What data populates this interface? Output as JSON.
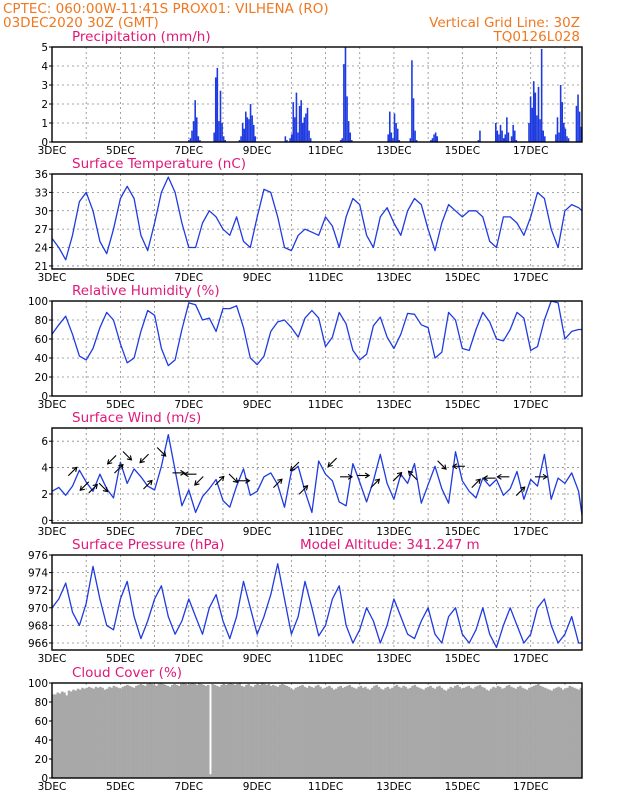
{
  "header": {
    "line1_left": "CPTEC:   060:00W-11:41S   PROX01: VILHENA (RO)",
    "line2_left": "03DEC2020 30Z (GMT)",
    "line2_right": "Vertical Grid Line: 30Z",
    "line3_right": "TQ0126L028"
  },
  "colors": {
    "header": "#f07820",
    "panel_title": "#e0187a",
    "series": "#1f3be0",
    "cloud": "#a8a8a8"
  },
  "x_axis": {
    "tick_labels": [
      "3DEC",
      "5DEC",
      "7DEC",
      "9DEC",
      "11DEC",
      "13DEC",
      "15DEC",
      "17DEC"
    ],
    "days_span": 15.5
  },
  "chart_data": [
    {
      "id": "precip",
      "type": "bar",
      "title": "Precipitation (mm/h)",
      "ylim": [
        0,
        5
      ],
      "yticks": [
        0,
        1,
        2,
        3,
        4,
        5
      ],
      "grid": true,
      "values": [
        0,
        0,
        0,
        0,
        0,
        0,
        0,
        0,
        0,
        0,
        0,
        0,
        0,
        0,
        0,
        0,
        0,
        0,
        0,
        0,
        0,
        0,
        0,
        0,
        0,
        0,
        0,
        0,
        0,
        0,
        0,
        0,
        0,
        0,
        0,
        0,
        0,
        0,
        0,
        0,
        0,
        0,
        0,
        0,
        0,
        0,
        0,
        0,
        0,
        0,
        0,
        0,
        0,
        0,
        0,
        0,
        0,
        0,
        0,
        0,
        0,
        0,
        0,
        0,
        0,
        0,
        0,
        0,
        0,
        0,
        0,
        0,
        0,
        0,
        0,
        0,
        0,
        0,
        0,
        0,
        0,
        0,
        0,
        0,
        0,
        0,
        0.1,
        0.2,
        0.6,
        1.1,
        2.2,
        1.3,
        0.3,
        0.1,
        0,
        0,
        0,
        0,
        0,
        0,
        0,
        0,
        0.5,
        3.4,
        3.9,
        1.1,
        2.7,
        1.0,
        0.3,
        0.1,
        0,
        0,
        0,
        0,
        0,
        0,
        0,
        0,
        0.1,
        0.3,
        1.0,
        0.7,
        1.6,
        1.3,
        1.2,
        2.0,
        1.4,
        0.9,
        0.3,
        0,
        0,
        0,
        0,
        0,
        0,
        0,
        0,
        0,
        0,
        0,
        0,
        0,
        0,
        0,
        0,
        0,
        0,
        0.3,
        0.1,
        0,
        0.2,
        0.4,
        2.1,
        1.3,
        2.6,
        0.5,
        1.9,
        2.2,
        1.0,
        1.3,
        1.5,
        1.8,
        0.6,
        0.2,
        0,
        0,
        0,
        0,
        0,
        0,
        0,
        0,
        0,
        0,
        0,
        0,
        0,
        0,
        0,
        0,
        0,
        0,
        0.1,
        0.2,
        4.1,
        5.0,
        2.4,
        1.1,
        0.5,
        0.1,
        0,
        0,
        0,
        0,
        0,
        0,
        0,
        0,
        0,
        0,
        0,
        0,
        0,
        0,
        0,
        0,
        0,
        0,
        0,
        0,
        0,
        0,
        0.4,
        1.6,
        0.5,
        0.2,
        1.5,
        1.0,
        0.7,
        0.1,
        0,
        0,
        0,
        0,
        0,
        0,
        0.2,
        4.3,
        2.3,
        0.6,
        0.1,
        0,
        0,
        0,
        0,
        0,
        0,
        0,
        0,
        0.1,
        0.2,
        0.4,
        0.5,
        0.3,
        0,
        0,
        0,
        0,
        0,
        0,
        0,
        0,
        0,
        0,
        0,
        0,
        0,
        0,
        0,
        0,
        0,
        0,
        0,
        0,
        0,
        0,
        0,
        0,
        0,
        0.1,
        0.6,
        0,
        0,
        0,
        0,
        0,
        0,
        0,
        0,
        0,
        1.0,
        0.6,
        0.4,
        0.9,
        0.6,
        0.2,
        0.4,
        1.3,
        0.5,
        0,
        0.3,
        0.9,
        0.6,
        0.1,
        0,
        0,
        0,
        0,
        0,
        0,
        0,
        1.0,
        2.4,
        1.8,
        3.2,
        2.6,
        1.4,
        2.9,
        1.2,
        4.9,
        0.6,
        0.3,
        0,
        0,
        0,
        0,
        0,
        0,
        0.4,
        1.3,
        0.5,
        3.0,
        2.1,
        1.0,
        0.7,
        0.3,
        0.2,
        0,
        0,
        0,
        0,
        1.9,
        2.5,
        1.6,
        0.8
      ]
    },
    {
      "id": "temp",
      "type": "line",
      "title": "Surface Temperature (nC)",
      "ylim": [
        20.5,
        36
      ],
      "yticks": [
        21,
        24,
        27,
        30,
        33,
        36
      ],
      "grid": true,
      "x": [
        0,
        0.2,
        0.4,
        0.6,
        0.8,
        1.0,
        1.2,
        1.4,
        1.6,
        1.8,
        2.0,
        2.2,
        2.4,
        2.6,
        2.8,
        3.0,
        3.2,
        3.4,
        3.6,
        3.8,
        4.0,
        4.2,
        4.4,
        4.6,
        4.8,
        5.0,
        5.2,
        5.4,
        5.6,
        5.8,
        6.0,
        6.2,
        6.4,
        6.6,
        6.8,
        7.0,
        7.2,
        7.4,
        7.6,
        7.8,
        8.0,
        8.2,
        8.4,
        8.6,
        8.8,
        9.0,
        9.2,
        9.4,
        9.6,
        9.8,
        10.0,
        10.2,
        10.4,
        10.6,
        10.8,
        11.0,
        11.2,
        11.4,
        11.6,
        11.8,
        12.0,
        12.2,
        12.4,
        12.6,
        12.8,
        13.0,
        13.2,
        13.4,
        13.6,
        13.8,
        14.0,
        14.2,
        14.4,
        14.6,
        14.8,
        15.0,
        15.2,
        15.4,
        15.5
      ],
      "values": [
        25.5,
        24,
        22,
        26,
        31.5,
        33,
        30,
        25,
        23,
        27,
        32,
        34,
        32,
        26,
        23.5,
        28,
        33,
        35.5,
        33,
        28,
        24,
        24,
        28,
        30,
        29,
        27,
        26,
        29,
        25,
        24,
        29,
        33.5,
        33,
        29,
        24,
        23.5,
        26,
        27,
        26.5,
        26,
        29,
        27.5,
        24,
        29,
        32,
        31,
        26,
        24,
        29,
        30.5,
        28,
        26,
        30,
        32,
        31,
        27,
        23.5,
        28,
        31,
        30,
        29,
        30,
        30,
        29,
        25,
        24,
        29,
        29,
        28,
        26,
        29,
        33,
        32,
        27,
        24,
        30,
        31,
        30.5,
        30
      ]
    },
    {
      "id": "rh",
      "type": "line",
      "title": "Relative Humidity (%)",
      "ylim": [
        0,
        100
      ],
      "yticks": [
        0,
        20,
        40,
        60,
        80,
        100
      ],
      "grid": true,
      "x": [
        0,
        0.2,
        0.4,
        0.6,
        0.8,
        1.0,
        1.2,
        1.4,
        1.6,
        1.8,
        2.0,
        2.2,
        2.4,
        2.6,
        2.8,
        3.0,
        3.2,
        3.4,
        3.6,
        3.8,
        4.0,
        4.2,
        4.4,
        4.6,
        4.8,
        5.0,
        5.2,
        5.4,
        5.6,
        5.8,
        6.0,
        6.2,
        6.4,
        6.6,
        6.8,
        7.0,
        7.2,
        7.4,
        7.6,
        7.8,
        8.0,
        8.2,
        8.4,
        8.6,
        8.8,
        9.0,
        9.2,
        9.4,
        9.6,
        9.8,
        10.0,
        10.2,
        10.4,
        10.6,
        10.8,
        11.0,
        11.2,
        11.4,
        11.6,
        11.8,
        12.0,
        12.2,
        12.4,
        12.6,
        12.8,
        13.0,
        13.2,
        13.4,
        13.6,
        13.8,
        14.0,
        14.2,
        14.4,
        14.6,
        14.8,
        15.0,
        15.2,
        15.4,
        15.5
      ],
      "values": [
        65,
        75,
        84,
        65,
        42,
        38,
        50,
        72,
        88,
        80,
        55,
        35,
        40,
        68,
        90,
        85,
        50,
        32,
        38,
        70,
        98,
        96,
        80,
        82,
        68,
        92,
        92,
        95,
        72,
        40,
        33,
        42,
        68,
        78,
        80,
        72,
        62,
        82,
        90,
        82,
        52,
        62,
        88,
        76,
        48,
        38,
        44,
        74,
        83,
        62,
        50,
        65,
        87,
        86,
        75,
        72,
        40,
        46,
        88,
        80,
        50,
        48,
        70,
        88,
        78,
        60,
        58,
        70,
        88,
        82,
        48,
        52,
        80,
        100,
        98,
        60,
        68,
        70,
        70
      ]
    },
    {
      "id": "wind",
      "type": "line",
      "title": "Surface Wind (m/s)",
      "ylim": [
        -0.2,
        7.0
      ],
      "yticks": [
        0,
        2,
        4,
        6
      ],
      "grid": true,
      "x": [
        0,
        0.2,
        0.4,
        0.6,
        0.8,
        1.0,
        1.2,
        1.4,
        1.6,
        1.8,
        2.0,
        2.2,
        2.4,
        2.6,
        2.8,
        3.0,
        3.2,
        3.4,
        3.6,
        3.8,
        4.0,
        4.2,
        4.4,
        4.6,
        4.8,
        5.0,
        5.2,
        5.4,
        5.6,
        5.8,
        6.0,
        6.2,
        6.4,
        6.6,
        6.8,
        7.0,
        7.2,
        7.4,
        7.6,
        7.8,
        8.0,
        8.2,
        8.4,
        8.6,
        8.8,
        9.0,
        9.2,
        9.4,
        9.6,
        9.8,
        10.0,
        10.2,
        10.4,
        10.6,
        10.8,
        11.0,
        11.2,
        11.4,
        11.6,
        11.8,
        12.0,
        12.2,
        12.4,
        12.6,
        12.8,
        13.0,
        13.2,
        13.4,
        13.6,
        13.8,
        14.0,
        14.2,
        14.4,
        14.6,
        14.8,
        15.0,
        15.2,
        15.4,
        15.5
      ],
      "values": [
        2.2,
        2.5,
        1.9,
        2.6,
        3.8,
        2.9,
        2.2,
        3.5,
        2.4,
        1.7,
        4.4,
        2.8,
        3.9,
        3.3,
        2.6,
        2.3,
        4.1,
        6.5,
        3.8,
        1.1,
        2.3,
        0.6,
        1.8,
        2.4,
        3.1,
        1.5,
        1.0,
        2.6,
        3.9,
        1.9,
        2.2,
        3.3,
        3.6,
        2.7,
        1.0,
        3.7,
        4.1,
        2.2,
        0.6,
        4.5,
        3.5,
        3.0,
        1.4,
        1.1,
        4.3,
        2.9,
        1.4,
        3.0,
        5.0,
        2.8,
        1.6,
        3.5,
        2.8,
        4.3,
        1.3,
        2.7,
        4.1,
        2.4,
        1.3,
        5.2,
        3.0,
        2.2,
        1.7,
        3.2,
        2.6,
        3.1,
        1.9,
        2.4,
        3.7,
        1.6,
        3.1,
        2.6,
        5.0,
        1.6,
        3.2,
        2.8,
        3.6,
        2.2,
        0.4
      ]
    },
    {
      "id": "pres",
      "type": "line",
      "title": "Surface Pressure (hPa)",
      "annotation": "Model Altitude: 341.247 m",
      "ylim": [
        965.2,
        976
      ],
      "yticks": [
        966,
        968,
        970,
        972,
        974,
        976
      ],
      "grid": true,
      "x": [
        0,
        0.2,
        0.4,
        0.6,
        0.8,
        1.0,
        1.2,
        1.4,
        1.6,
        1.8,
        2.0,
        2.2,
        2.4,
        2.6,
        2.8,
        3.0,
        3.2,
        3.4,
        3.6,
        3.8,
        4.0,
        4.2,
        4.4,
        4.6,
        4.8,
        5.0,
        5.2,
        5.4,
        5.6,
        5.8,
        6.0,
        6.2,
        6.4,
        6.6,
        6.8,
        7.0,
        7.2,
        7.4,
        7.6,
        7.8,
        8.0,
        8.2,
        8.4,
        8.6,
        8.8,
        9.0,
        9.2,
        9.4,
        9.6,
        9.8,
        10.0,
        10.2,
        10.4,
        10.6,
        10.8,
        11.0,
        11.2,
        11.4,
        11.6,
        11.8,
        12.0,
        12.2,
        12.4,
        12.6,
        12.8,
        13.0,
        13.2,
        13.4,
        13.6,
        13.8,
        14.0,
        14.2,
        14.4,
        14.6,
        14.8,
        15.0,
        15.2,
        15.4,
        15.5
      ],
      "values": [
        970,
        971,
        972.8,
        969.5,
        968,
        970.5,
        974.7,
        971,
        968,
        967.5,
        971,
        973,
        969,
        966.5,
        968.5,
        971,
        972.5,
        969,
        967,
        968.5,
        971,
        969,
        967,
        970,
        971.5,
        968.5,
        966.5,
        969,
        973,
        970,
        967,
        969,
        971.5,
        975,
        971,
        967,
        969,
        973,
        970,
        966.8,
        968,
        971,
        972.5,
        968,
        966,
        967.5,
        970,
        968.5,
        966,
        968,
        971,
        969,
        967,
        966.5,
        968.5,
        970,
        967,
        966,
        969,
        970,
        967,
        966,
        967.5,
        970,
        967,
        965.5,
        968,
        970,
        968,
        966,
        967,
        970,
        971,
        968,
        966,
        967,
        969,
        966,
        966
      ]
    },
    {
      "id": "cloud",
      "type": "area",
      "title": "Cloud Cover (%)",
      "ylim": [
        0,
        100
      ],
      "yticks": [
        0,
        20,
        40,
        60,
        80,
        100
      ],
      "grid": true,
      "values": [
        88,
        88,
        90,
        89,
        91,
        90,
        87,
        92,
        91,
        93,
        92,
        94,
        93,
        95,
        94,
        95,
        96,
        95,
        94,
        96,
        95,
        96,
        95,
        93,
        94,
        96,
        95,
        97,
        96,
        95,
        94,
        96,
        97,
        98,
        97,
        96,
        95,
        97,
        98,
        99,
        98,
        97,
        99,
        100,
        99,
        98,
        97,
        99,
        100,
        99,
        98,
        97,
        96,
        98,
        99,
        98,
        97,
        99,
        100,
        99,
        98,
        99,
        100,
        99,
        98,
        100,
        99,
        98,
        97,
        98,
        4,
        99,
        98,
        97,
        96,
        98,
        99,
        98,
        99,
        100,
        99,
        98,
        99,
        100,
        97,
        96,
        98,
        99,
        97,
        96,
        98,
        99,
        98,
        100,
        99,
        98,
        99,
        97,
        98,
        97,
        96,
        98,
        99,
        98,
        97,
        96,
        94,
        93,
        95,
        96,
        97,
        98,
        96,
        95,
        97,
        96,
        95,
        97,
        98,
        96,
        94,
        95,
        96,
        97,
        95,
        93,
        94,
        96,
        97,
        95,
        96,
        97,
        98,
        96,
        95,
        94,
        96,
        97,
        95,
        96,
        94,
        93,
        95,
        97,
        98,
        96,
        94,
        93,
        95,
        96,
        94,
        95,
        97,
        98,
        96,
        95,
        97,
        96,
        94,
        95,
        97,
        98,
        96,
        95,
        94,
        93,
        95,
        96,
        97,
        95,
        94,
        96,
        97,
        95,
        93,
        92,
        94,
        96,
        95,
        97,
        98,
        96,
        94,
        95,
        96,
        97,
        95,
        94,
        96,
        97,
        98,
        96,
        95,
        93,
        92,
        94,
        96,
        95,
        97,
        96,
        94,
        95,
        97,
        98,
        96,
        95,
        94,
        96,
        97,
        95,
        94,
        93,
        95,
        96,
        97,
        98,
        99,
        97,
        96,
        95,
        94,
        93,
        92,
        94,
        95,
        96,
        95,
        93,
        94,
        95,
        97,
        96,
        95,
        94,
        93,
        95
      ]
    }
  ],
  "wind_arrows": [
    {
      "d": 0.6,
      "v": 3.7,
      "dx": 1,
      "dy": 1
    },
    {
      "d": 0.95,
      "v": 2.6,
      "dx": -1,
      "dy": -1
    },
    {
      "d": 1.2,
      "v": 2.4,
      "dx": 1,
      "dy": 1
    },
    {
      "d": 1.5,
      "v": 2.5,
      "dx": 1,
      "dy": -1
    },
    {
      "d": 1.75,
      "v": 4.6,
      "dx": -1,
      "dy": -1
    },
    {
      "d": 1.95,
      "v": 3.9,
      "dx": 1,
      "dy": 1
    },
    {
      "d": 2.2,
      "v": 4.9,
      "dx": 1,
      "dy": -1
    },
    {
      "d": 2.7,
      "v": 4.7,
      "dx": -1,
      "dy": -1
    },
    {
      "d": 2.8,
      "v": 2.7,
      "dx": 1,
      "dy": 1
    },
    {
      "d": 3.2,
      "v": 5.2,
      "dx": 1,
      "dy": -1
    },
    {
      "d": 3.7,
      "v": 3.6,
      "dx": 1,
      "dy": 0
    },
    {
      "d": 4.05,
      "v": 3.5,
      "dx": -1,
      "dy": 0
    },
    {
      "d": 4.3,
      "v": 3.0,
      "dx": -1,
      "dy": -1
    },
    {
      "d": 4.9,
      "v": 3.0,
      "dx": 1,
      "dy": 1
    },
    {
      "d": 5.3,
      "v": 3.2,
      "dx": 1,
      "dy": -1
    },
    {
      "d": 5.6,
      "v": 3.0,
      "dx": 1,
      "dy": 0
    },
    {
      "d": 6.6,
      "v": 2.8,
      "dx": 1,
      "dy": 1
    },
    {
      "d": 7.1,
      "v": 4.1,
      "dx": -1,
      "dy": -1
    },
    {
      "d": 7.35,
      "v": 2.3,
      "dx": 1,
      "dy": 1
    },
    {
      "d": 8.2,
      "v": 4.4,
      "dx": -1,
      "dy": -1
    },
    {
      "d": 8.6,
      "v": 3.3,
      "dx": 1,
      "dy": 0
    },
    {
      "d": 9.1,
      "v": 3.4,
      "dx": 1,
      "dy": 0
    },
    {
      "d": 9.45,
      "v": 2.8,
      "dx": 1,
      "dy": 1
    },
    {
      "d": 10.1,
      "v": 3.3,
      "dx": 1,
      "dy": 1
    },
    {
      "d": 10.55,
      "v": 3.4,
      "dx": -1,
      "dy": 1
    },
    {
      "d": 11.4,
      "v": 4.2,
      "dx": 1,
      "dy": -1
    },
    {
      "d": 11.9,
      "v": 4.1,
      "dx": -1,
      "dy": 0
    },
    {
      "d": 12.4,
      "v": 2.8,
      "dx": 1,
      "dy": 1
    },
    {
      "d": 12.8,
      "v": 3.2,
      "dx": -1,
      "dy": 0
    },
    {
      "d": 13.2,
      "v": 3.3,
      "dx": -1,
      "dy": 0
    },
    {
      "d": 13.7,
      "v": 2.2,
      "dx": 1,
      "dy": 1
    },
    {
      "d": 14.3,
      "v": 3.3,
      "dx": 1,
      "dy": 0
    }
  ]
}
